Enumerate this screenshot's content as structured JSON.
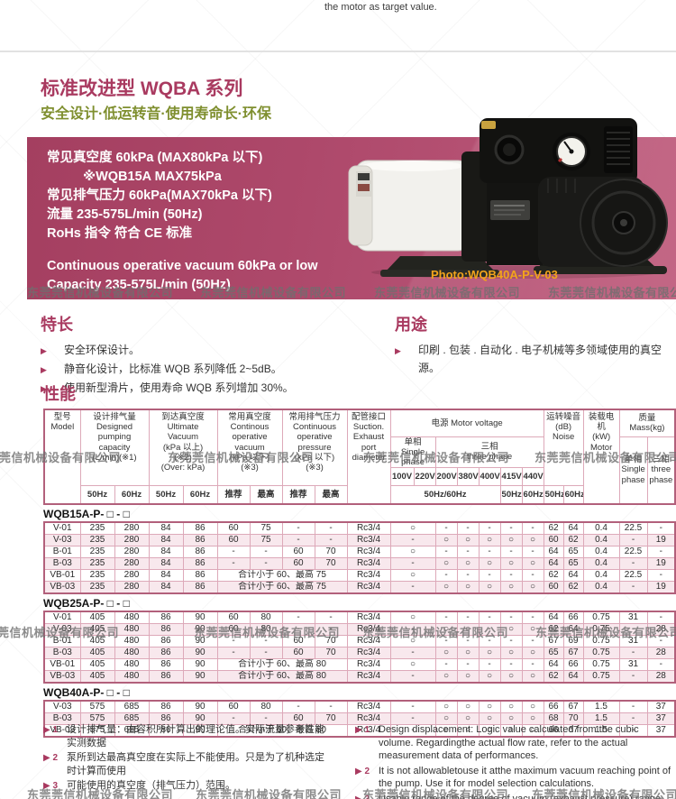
{
  "page": {
    "top_fragment": "the motor as target value.",
    "watermark_text": "东莞莞信机械设备有限公司"
  },
  "colors": {
    "accent_magenta": "#a93a60",
    "subtitle_olive": "#7f8f2f",
    "spec_box_pink": "#ad486a",
    "photo_caption_orange": "#f2a41b",
    "table_border": "#b2607b",
    "table_border_light": "#dda9b9",
    "row_alt_pink": "#f8e8ed"
  },
  "header": {
    "title": "标准改进型 WQBA 系列",
    "subtitle": "安全设计·低运转音·使用寿命长·环保"
  },
  "spec_box": {
    "lines_cn": [
      "常见真空度 60kPa (MAX80kPa 以下)",
      "※WQB15A MAX75kPa",
      "常见排气压力 60kPa(MAX70kPa 以下)",
      "流量 235-575L/min (50Hz)",
      "RoHs 指令 符合 CE 标准"
    ],
    "lines_en": [
      "Continuous operative vacuum 60kPa or low",
      "Capacity 235-575L/min (50Hz)"
    ],
    "photo_caption": "Photo:WQB40A-P-V-03"
  },
  "features": {
    "title": "特长",
    "items": [
      "安全环保设计。",
      "静音化设计，比标准 WQB 系列降低 2~5dB。",
      "使用新型滑片，使用寿命 WQB 系列增加 30%。"
    ]
  },
  "applications": {
    "title": "用途",
    "items": [
      "印刷 . 包装 . 自动化 . 电子机械等多领域使用的真空源。"
    ]
  },
  "performance": {
    "title": "性能",
    "header": {
      "model": "型号\nModel",
      "designed": "设计排气量\nDesigned\npumping\ncapacity\n(L/min)(※1)",
      "ultimate": "到达真空度\nUltimate\nVacuum\n(kPa 以上)\n(※2)\n(Over: kPa)",
      "oper_vacuum": "常用真空度\nContinous\noperative\nvacuum\n(kPa 以下)\n(※3)",
      "oper_pressure": "常用排气压力\nContinuous\noperative\npressure\n(kPa 以下)\n(※3)",
      "port": "配管接口\nSuction.\nExhaust\nport\ndiameter",
      "voltage": "电源 Motor voltage",
      "single_phase": "单相\nSingle phase",
      "three_phase": "三相\nthree phase",
      "volts": [
        "100V",
        "220V",
        "200V",
        "380V",
        "400V",
        "415V",
        "440V"
      ],
      "freq_span": "50Hz/60Hz",
      "freq_50": "50Hz",
      "freq_60": "60Hz",
      "noise": "运转噪音\n(dB)\nNoise",
      "motor": "装载电机\n(kW)\nMotor",
      "mass": "质量\nMass(kg)",
      "mass_single": "单相\nSingle\nphase",
      "mass_three": "三相\nthree\nphase",
      "hz50": "50Hz",
      "hz60": "60Hz",
      "rec": "推荐",
      "max": "最高"
    },
    "sections": [
      {
        "label": "WQB15A-P- □ - □",
        "rows": [
          {
            "model": "V-01",
            "d50": "235",
            "d60": "280",
            "u50": "84",
            "u60": "86",
            "v_rec": "60",
            "v_max": "75",
            "p_rec": "-",
            "p_max": "-",
            "port": "Rc3/4",
            "volt": [
              "○",
              "-",
              "-",
              "-",
              "-",
              "-"
            ],
            "n50": "62",
            "n60": "64",
            "motor": "0.4",
            "mass_single": "22.5",
            "mass_three": "-"
          },
          {
            "model": "V-03",
            "d50": "235",
            "d60": "280",
            "u50": "84",
            "u60": "86",
            "v_rec": "60",
            "v_max": "75",
            "p_rec": "-",
            "p_max": "-",
            "port": "Rc3/4",
            "volt": [
              "-",
              "○",
              "○",
              "○",
              "○",
              "○"
            ],
            "n50": "60",
            "n60": "62",
            "motor": "0.4",
            "mass_single": "-",
            "mass_three": "19"
          },
          {
            "model": "B-01",
            "d50": "235",
            "d60": "280",
            "u50": "84",
            "u60": "86",
            "v_rec": "-",
            "v_max": "-",
            "p_rec": "60",
            "p_max": "70",
            "port": "Rc3/4",
            "volt": [
              "○",
              "-",
              "-",
              "-",
              "-",
              "-"
            ],
            "n50": "64",
            "n60": "65",
            "motor": "0.4",
            "mass_single": "22.5",
            "mass_three": "-"
          },
          {
            "model": "B-03",
            "d50": "235",
            "d60": "280",
            "u50": "84",
            "u60": "86",
            "v_rec": "-",
            "v_max": "-",
            "p_rec": "60",
            "p_max": "70",
            "port": "Rc3/4",
            "volt": [
              "-",
              "○",
              "○",
              "○",
              "○",
              "○"
            ],
            "n50": "64",
            "n60": "65",
            "motor": "0.4",
            "mass_single": "-",
            "mass_three": "19"
          },
          {
            "model": "VB-01",
            "d50": "235",
            "d60": "280",
            "u50": "84",
            "u60": "86",
            "merged": "合计小于 60、最高 75",
            "port": "Rc3/4",
            "volt": [
              "○",
              "-",
              "-",
              "-",
              "-",
              "-"
            ],
            "n50": "62",
            "n60": "64",
            "motor": "0.4",
            "mass_single": "22.5",
            "mass_three": "-"
          },
          {
            "model": "VB-03",
            "d50": "235",
            "d60": "280",
            "u50": "84",
            "u60": "86",
            "merged": "合计小于 60、最高 75",
            "port": "Rc3/4",
            "volt": [
              "-",
              "○",
              "○",
              "○",
              "○",
              "○"
            ],
            "n50": "60",
            "n60": "62",
            "motor": "0.4",
            "mass_single": "-",
            "mass_three": "19"
          }
        ]
      },
      {
        "label": "WQB25A-P- □ - □",
        "rows": [
          {
            "model": "V-01",
            "d50": "405",
            "d60": "480",
            "u50": "86",
            "u60": "90",
            "v_rec": "60",
            "v_max": "80",
            "p_rec": "-",
            "p_max": "-",
            "port": "Rc3/4",
            "volt": [
              "○",
              "-",
              "-",
              "-",
              "-",
              "-"
            ],
            "n50": "64",
            "n60": "66",
            "motor": "0.75",
            "mass_single": "31",
            "mass_three": "-"
          },
          {
            "model": "V-03",
            "d50": "405",
            "d60": "480",
            "u50": "86",
            "u60": "90",
            "v_rec": "60",
            "v_max": "80",
            "p_rec": "-",
            "p_max": "-",
            "port": "Rc3/4",
            "volt": [
              "-",
              "○",
              "○",
              "-",
              "○",
              "○"
            ],
            "n50": "62",
            "n60": "64",
            "motor": "0.75",
            "mass_single": "-",
            "mass_three": "28"
          },
          {
            "model": "B-01",
            "d50": "405",
            "d60": "480",
            "u50": "86",
            "u60": "90",
            "v_rec": "-",
            "v_max": "-",
            "p_rec": "60",
            "p_max": "70",
            "port": "Rc3/4",
            "volt": [
              "○",
              "-",
              "-",
              "-",
              "-",
              "-"
            ],
            "n50": "67",
            "n60": "69",
            "motor": "0.75",
            "mass_single": "31",
            "mass_three": "-"
          },
          {
            "model": "B-03",
            "d50": "405",
            "d60": "480",
            "u50": "86",
            "u60": "90",
            "v_rec": "-",
            "v_max": "-",
            "p_rec": "60",
            "p_max": "70",
            "port": "Rc3/4",
            "volt": [
              "-",
              "○",
              "○",
              "○",
              "○",
              "○"
            ],
            "n50": "65",
            "n60": "67",
            "motor": "0.75",
            "mass_single": "-",
            "mass_three": "28"
          },
          {
            "model": "VB-01",
            "d50": "405",
            "d60": "480",
            "u50": "86",
            "u60": "90",
            "merged": "合计小于 60、最高 80",
            "port": "Rc3/4",
            "volt": [
              "○",
              "-",
              "-",
              "-",
              "-",
              "-"
            ],
            "n50": "64",
            "n60": "66",
            "motor": "0.75",
            "mass_single": "31",
            "mass_three": "-"
          },
          {
            "model": "VB-03",
            "d50": "405",
            "d60": "480",
            "u50": "86",
            "u60": "90",
            "merged": "合计小于 60、最高 80",
            "port": "Rc3/4",
            "volt": [
              "-",
              "○",
              "○",
              "○",
              "○",
              "○"
            ],
            "n50": "62",
            "n60": "64",
            "motor": "0.75",
            "mass_single": "-",
            "mass_three": "28"
          }
        ]
      },
      {
        "label": "WQB40A-P- □ - □",
        "rows": [
          {
            "model": "V-03",
            "d50": "575",
            "d60": "685",
            "u50": "86",
            "u60": "90",
            "v_rec": "60",
            "v_max": "80",
            "p_rec": "-",
            "p_max": "-",
            "port": "Rc3/4",
            "volt": [
              "-",
              "○",
              "○",
              "○",
              "○",
              "○"
            ],
            "n50": "66",
            "n60": "67",
            "motor": "1.5",
            "mass_single": "-",
            "mass_three": "37"
          },
          {
            "model": "B-03",
            "d50": "575",
            "d60": "685",
            "u50": "86",
            "u60": "90",
            "v_rec": "-",
            "v_max": "-",
            "p_rec": "60",
            "p_max": "70",
            "port": "Rc3/4",
            "volt": [
              "-",
              "○",
              "○",
              "○",
              "○",
              "○"
            ],
            "n50": "68",
            "n60": "70",
            "motor": "1.5",
            "mass_single": "-",
            "mass_three": "37"
          },
          {
            "model": "VB-03",
            "d50": "575",
            "d60": "685",
            "u50": "86",
            "u60": "90",
            "merged": "合计小于 60、最高 80",
            "port": "Rc3/4",
            "volt": [
              "-",
              "○",
              "○",
              "○",
              "○",
              "○"
            ],
            "n50": "66",
            "n60": "67",
            "motor": "1.5",
            "mass_single": "-",
            "mass_three": "37"
          }
        ]
      }
    ]
  },
  "footnotes": {
    "cn": [
      {
        "num": "1",
        "text": "设计排气量：由容积所计算出的理论值。实际流量参考性能实测数据"
      },
      {
        "num": "2",
        "text": "泵所到达最高真空度在实际上不能使用。只是为了机种选定时计算而使用"
      },
      {
        "num": "3",
        "text": "可能使用的真空度（排气压力）范围。"
      }
    ],
    "en": [
      {
        "num": "1",
        "text": "Design displacement: Logic value calculated from the cubic volume. Regardingthe actual flow rate, refer to the actual measurement data of performances."
      },
      {
        "num": "2",
        "text": "It is not allowabletouse it atthe maximum vacuum reaching point of the pump. Use it for model selection calculations."
      },
      {
        "num": "3",
        "text": "Usable range of the degree of vacuum (exhaust pressure) range"
      }
    ]
  }
}
